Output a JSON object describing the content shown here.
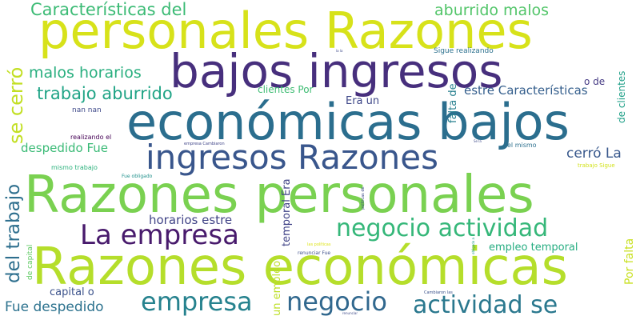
{
  "words": [
    {
      "text": "personales Razones",
      "color": "#d7e21a"
    },
    {
      "text": "bajos ingresos",
      "color": "#472f7d"
    },
    {
      "text": "económicas bajos",
      "color": "#2b6e8e"
    },
    {
      "text": "ingresos Razones",
      "color": "#39568c"
    },
    {
      "text": "Razones personales",
      "color": "#7ad151"
    },
    {
      "text": "Razones económicas",
      "color": "#b5de2b"
    },
    {
      "text": "La empresa",
      "color": "#481a6c"
    },
    {
      "text": "negocio actividad",
      "color": "#35b779"
    },
    {
      "text": "empresa",
      "color": "#26828e"
    },
    {
      "text": "negocio",
      "color": "#31688e"
    },
    {
      "text": "actividad se",
      "color": "#2a788e"
    },
    {
      "text": "Características del",
      "color": "#3cbb75"
    },
    {
      "text": "aburrido malos",
      "color": "#52c569"
    },
    {
      "text": "malos horarios",
      "color": "#29af7f"
    },
    {
      "text": "trabajo aburrido",
      "color": "#20a486"
    },
    {
      "text": "se cerró",
      "color": "#c2df23"
    },
    {
      "text": "del trabajo",
      "color": "#2e6f8e"
    },
    {
      "text": "despedido Fue",
      "color": "#3aba76"
    },
    {
      "text": "horarios estre",
      "color": "#414487"
    },
    {
      "text": "Fue despedido",
      "color": "#2c728e"
    },
    {
      "text": "capital o",
      "color": "#3b528b"
    },
    {
      "text": "cerró La",
      "color": "#38588c"
    },
    {
      "text": "estre Características",
      "color": "#355f8d"
    },
    {
      "text": "Era un",
      "color": "#3f4889"
    },
    {
      "text": "clientes Por",
      "color": "#3fbc73"
    },
    {
      "text": "falta de",
      "color": "#277f8e"
    },
    {
      "text": "temporal Era",
      "color": "#404387"
    },
    {
      "text": "empleo temporal",
      "color": "#26ad81"
    },
    {
      "text": "Por falta",
      "color": "#c8e020"
    },
    {
      "text": "de clientes",
      "color": "#1fa088"
    },
    {
      "text": "un empleo",
      "color": "#bddf26"
    },
    {
      "text": "Sigue realizando",
      "color": "#2c718e"
    },
    {
      "text": "o de",
      "color": "#443983"
    },
    {
      "text": "nan nan",
      "color": "#3e4989"
    },
    {
      "text": "realizando el",
      "color": "#440154"
    },
    {
      "text": "el mismo",
      "color": "#2d708e"
    },
    {
      "text": "mismo trabajo",
      "color": "#2db27d"
    },
    {
      "text": "Fue obligado",
      "color": "#21918c"
    },
    {
      "text": "de capital",
      "color": "#5ec962"
    },
    {
      "text": "trabajo Sigue",
      "color": "#d2e21b"
    },
    {
      "text": "empresa Cambiaron",
      "color": "#404588"
    },
    {
      "text": "renunciar Fue",
      "color": "#3d4e8a"
    },
    {
      "text": "las políticas",
      "color": "#dde318"
    },
    {
      "text": "Cambiaron las",
      "color": "#3b528b"
    },
    {
      "text": "políticas de",
      "color": "#3e4a89"
    },
    {
      "text": "la la",
      "color": "#3e4a89"
    },
    {
      "text": "Se la",
      "color": "#3e4a89"
    },
    {
      "text": "renunciar",
      "color": "#3e4a89"
    },
    {
      "text": "obligado a",
      "color": "#1f9a8a"
    }
  ]
}
